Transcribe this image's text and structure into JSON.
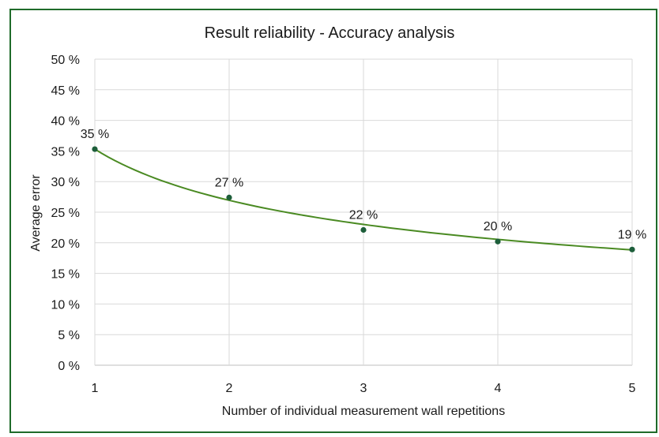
{
  "colors": {
    "border": "#1f6b2a",
    "line": "#4a8a22",
    "marker": "#1d5e3a",
    "grid": "#d9d9d9",
    "axis": "#bfbfbf"
  },
  "chart_data": {
    "type": "scatter",
    "title": "Result reliability - Accuracy analysis",
    "xlabel": "Number of individual measurement wall repetitions",
    "ylabel": "Average error",
    "x": [
      1,
      2,
      3,
      4,
      5
    ],
    "xticks": [
      "1",
      "2",
      "3",
      "4",
      "5"
    ],
    "xlim": [
      1,
      5
    ],
    "ylim": [
      0,
      50
    ],
    "yticks": [
      "0 %",
      "5 %",
      "10 %",
      "15 %",
      "20 %",
      "25 %",
      "30 %",
      "35 %",
      "40 %",
      "45 %",
      "50 %"
    ],
    "grid": true,
    "legend": "none",
    "series": [
      {
        "values": [
          35.3,
          27.4,
          22.1,
          20.2,
          18.9
        ],
        "labels": [
          "35 %",
          "27 %",
          "22 %",
          "20 %",
          "19 %"
        ]
      }
    ],
    "trendline": {
      "type": "power",
      "coefficient": 35.3,
      "exponent": -0.39
    }
  }
}
